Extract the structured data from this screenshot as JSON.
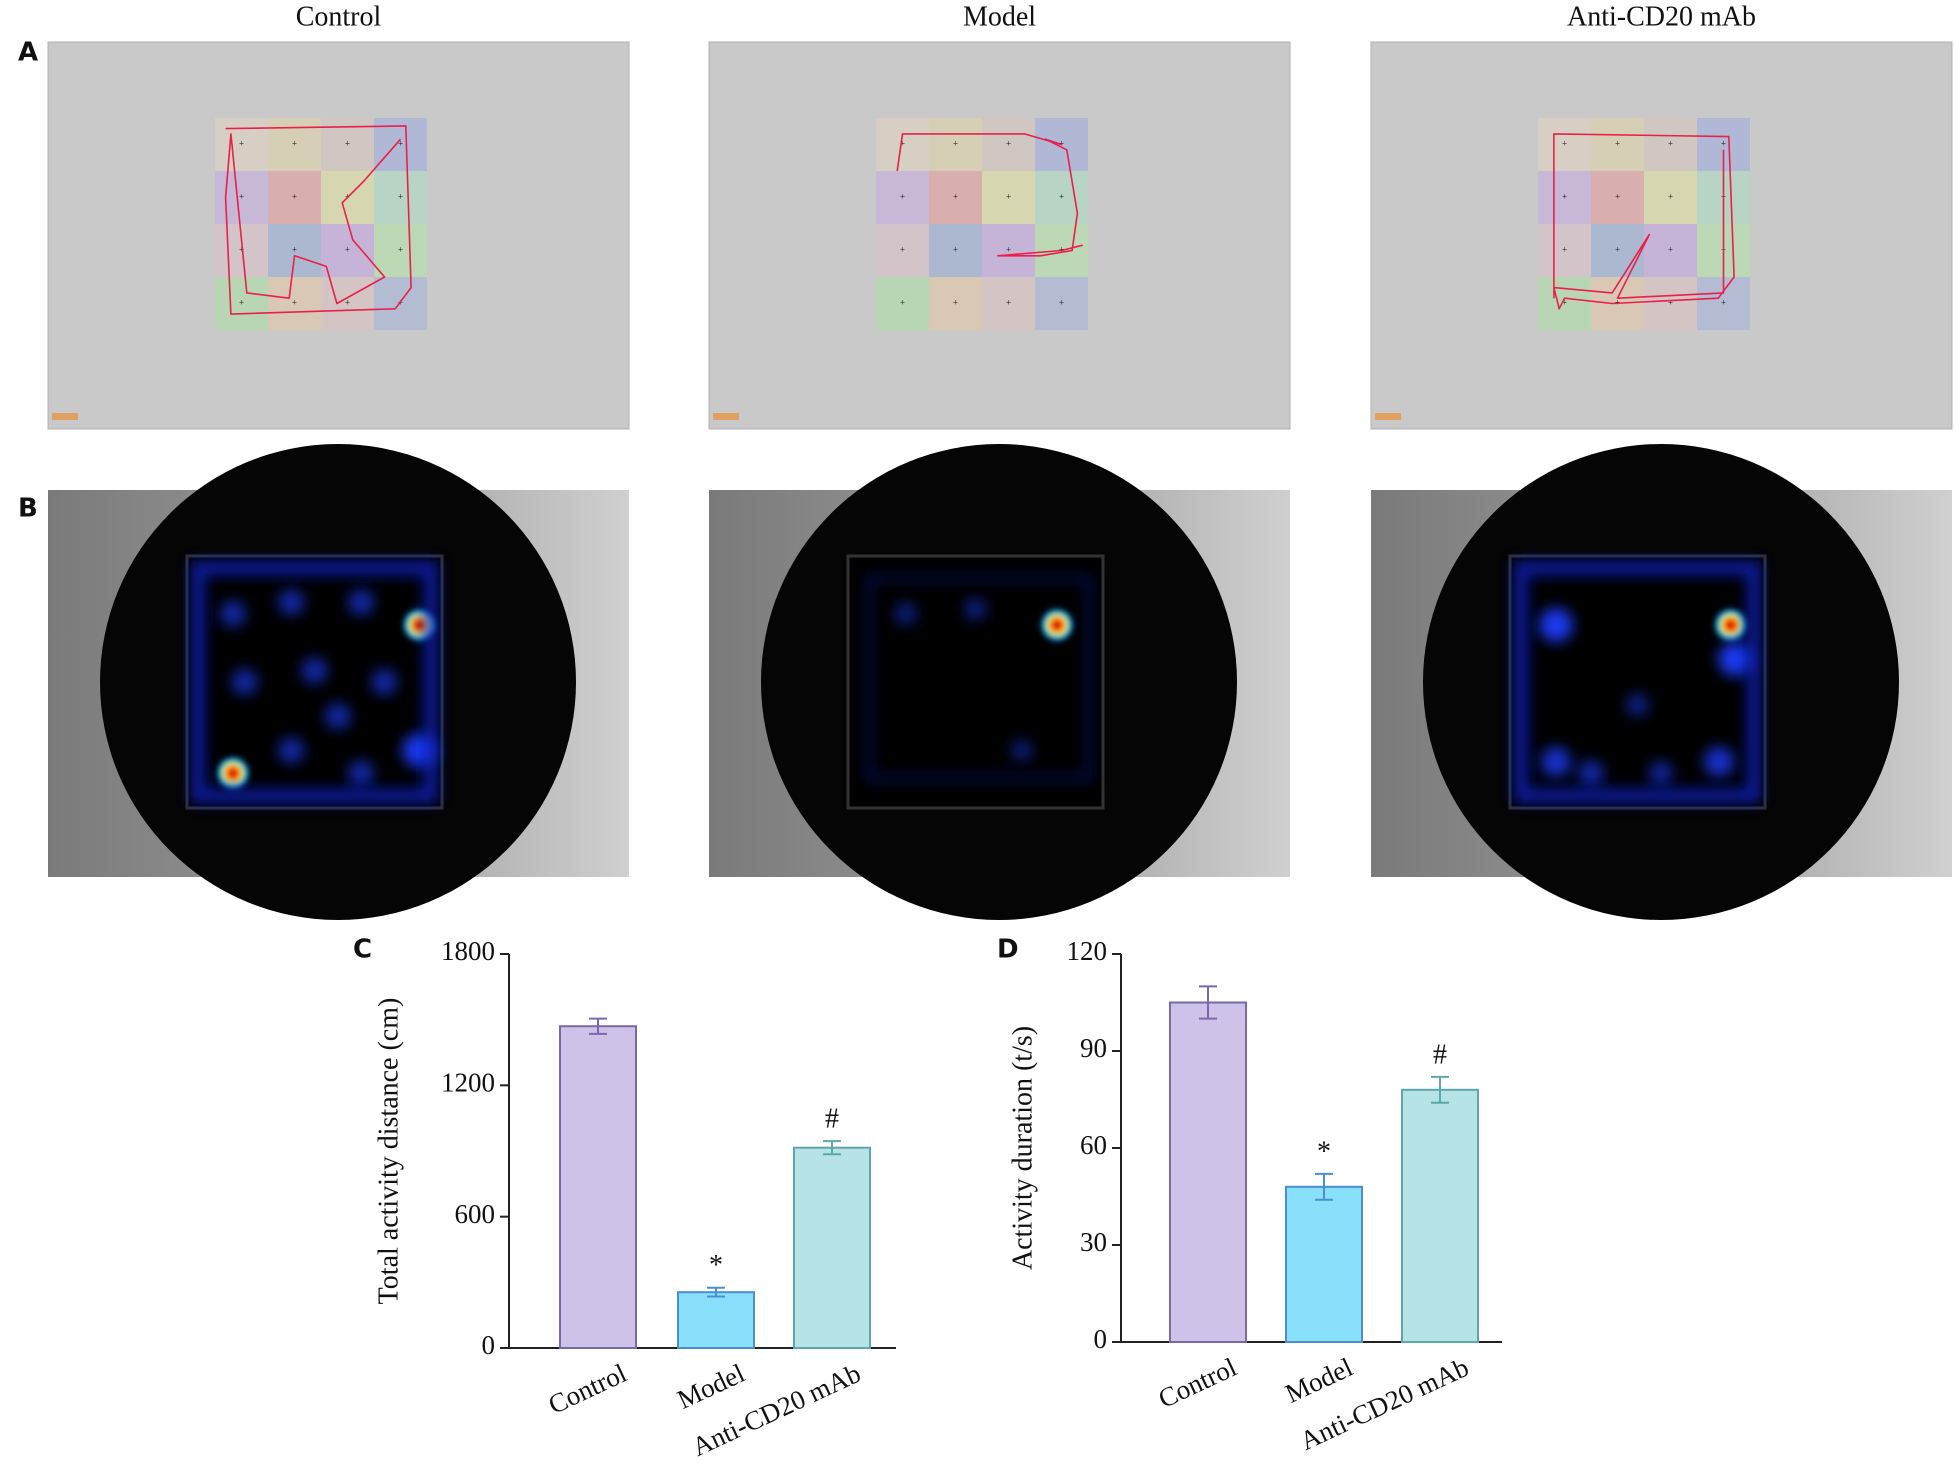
{
  "column_titles": [
    "Control",
    "Model",
    "Anti-CD20 mAb"
  ],
  "panel_labels": [
    "A",
    "B"
  ],
  "chart_data": [
    {
      "type": "bar",
      "label": "C",
      "y_label": "Total activity distance (cm)",
      "categories": [
        "Control",
        "Model",
        "Anti-CD20 mAb"
      ],
      "values": [
        1470,
        255,
        915
      ],
      "errors": [
        35,
        20,
        30
      ],
      "annotations": [
        null,
        "*",
        "#"
      ],
      "colors": [
        "#cfc2e8",
        "#88e0fb",
        "#b6e3e5"
      ],
      "edge_colors": [
        "#7a68a8",
        "#4a8fd0",
        "#5ea6aa"
      ],
      "ylim": [
        0,
        1800
      ],
      "yticks": [
        0,
        600,
        1200,
        1800
      ]
    },
    {
      "type": "bar",
      "label": "D",
      "y_label": "Activity duration (t/s)",
      "categories": [
        "Control",
        "Model",
        "Anti-CD20 mAb"
      ],
      "values": [
        105,
        48,
        78
      ],
      "errors": [
        5,
        4,
        4
      ],
      "annotations": [
        null,
        "*",
        "#"
      ],
      "colors": [
        "#cfc2e8",
        "#88e0fb",
        "#b6e3e5"
      ],
      "edge_colors": [
        "#7a68a8",
        "#4a8fd0",
        "#5ea6aa"
      ],
      "ylim": [
        0,
        120
      ],
      "yticks": [
        0,
        30,
        60,
        90,
        120
      ]
    }
  ]
}
